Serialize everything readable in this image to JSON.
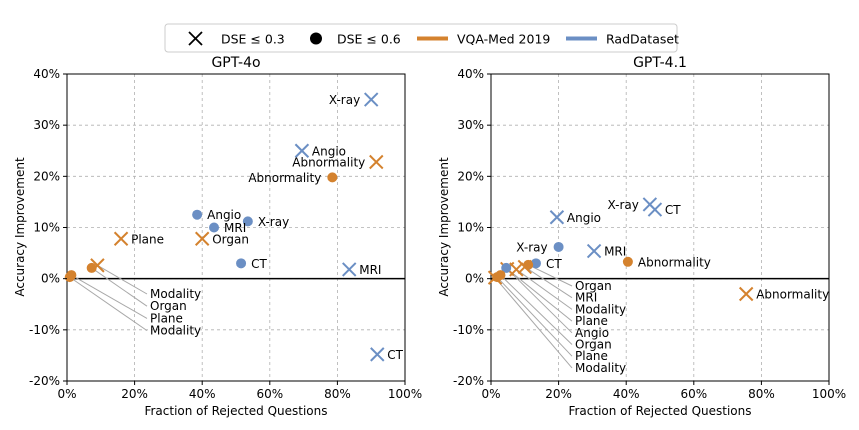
{
  "legend": {
    "items": [
      {
        "label": "DSE ≤ 0.3",
        "kind": "marker-x"
      },
      {
        "label": "DSE ≤ 0.6",
        "kind": "marker-dot"
      },
      {
        "label": "VQA-Med 2019",
        "kind": "line",
        "color": "#d4822e"
      },
      {
        "label": "RadDataset",
        "kind": "line",
        "color": "#6b8fc4"
      }
    ]
  },
  "colors": {
    "vqa": "#d4822e",
    "rad": "#6b8fc4"
  },
  "chart_data": [
    {
      "type": "scatter",
      "title": "GPT-4o",
      "xlabel": "Fraction of Rejected Questions",
      "ylabel": "Accuracy Improvement",
      "xlim": [
        0,
        100
      ],
      "ylim": [
        -20,
        40
      ],
      "xticks": [
        "0%",
        "20%",
        "40%",
        "60%",
        "80%",
        "100%"
      ],
      "yticks": [
        "-20%",
        "-10%",
        "0%",
        "10%",
        "20%",
        "30%",
        "40%"
      ],
      "grid": true,
      "points": [
        {
          "x": 90,
          "y": 35,
          "marker": "x",
          "dataset": "RadDataset",
          "label": "X-ray",
          "pos": "left"
        },
        {
          "x": 69.5,
          "y": 25,
          "marker": "x",
          "dataset": "RadDataset",
          "label": "Angio",
          "pos": "right"
        },
        {
          "x": 91.5,
          "y": 22.8,
          "marker": "x",
          "dataset": "VQA-Med 2019",
          "label": "Abnormality",
          "pos": "left"
        },
        {
          "x": 78.5,
          "y": 19.8,
          "marker": "dot",
          "dataset": "VQA-Med 2019",
          "label": "Abnormality",
          "pos": "left"
        },
        {
          "x": 38.5,
          "y": 12.5,
          "marker": "dot",
          "dataset": "RadDataset",
          "label": "Angio",
          "pos": "right"
        },
        {
          "x": 53.5,
          "y": 11.2,
          "marker": "dot",
          "dataset": "RadDataset",
          "label": "X-ray",
          "pos": "right"
        },
        {
          "x": 43.5,
          "y": 10,
          "marker": "dot",
          "dataset": "RadDataset",
          "label": "MRI",
          "pos": "right"
        },
        {
          "x": 16,
          "y": 7.8,
          "marker": "x",
          "dataset": "VQA-Med 2019",
          "label": "Plane",
          "pos": "right"
        },
        {
          "x": 40,
          "y": 7.8,
          "marker": "x",
          "dataset": "VQA-Med 2019",
          "label": "Organ",
          "pos": "right"
        },
        {
          "x": 51.5,
          "y": 3,
          "marker": "dot",
          "dataset": "RadDataset",
          "label": "CT",
          "pos": "right"
        },
        {
          "x": 83.5,
          "y": 1.8,
          "marker": "x",
          "dataset": "RadDataset",
          "label": "MRI",
          "pos": "right"
        },
        {
          "x": 91.8,
          "y": -14.8,
          "marker": "x",
          "dataset": "RadDataset",
          "label": "CT",
          "pos": "right"
        },
        {
          "x": 9,
          "y": 2.6,
          "marker": "x",
          "dataset": "VQA-Med 2019",
          "label": "Modality",
          "pos": "callout",
          "slot": 0
        },
        {
          "x": 7.3,
          "y": 2.1,
          "marker": "dot",
          "dataset": "VQA-Med 2019",
          "label": "Organ",
          "pos": "callout",
          "slot": 1
        },
        {
          "x": 1.3,
          "y": 0.7,
          "marker": "dot",
          "dataset": "VQA-Med 2019",
          "label": "Plane",
          "pos": "callout",
          "slot": 2
        },
        {
          "x": 0.8,
          "y": 0.3,
          "marker": "dot",
          "dataset": "VQA-Med 2019",
          "label": "Modality",
          "pos": "callout",
          "slot": 3
        }
      ]
    },
    {
      "type": "scatter",
      "title": "GPT-4.1",
      "xlabel": "Fraction of Rejected Questions",
      "ylabel": "Accuracy Improvement",
      "xlim": [
        0,
        100
      ],
      "ylim": [
        -20,
        40
      ],
      "xticks": [
        "0%",
        "20%",
        "40%",
        "60%",
        "80%",
        "100%"
      ],
      "yticks": [
        "-20%",
        "-10%",
        "0%",
        "10%",
        "20%",
        "30%",
        "40%"
      ],
      "grid": true,
      "points": [
        {
          "x": 47,
          "y": 14.5,
          "marker": "x",
          "dataset": "RadDataset",
          "label": "X-ray",
          "pos": "left"
        },
        {
          "x": 48.5,
          "y": 13.5,
          "marker": "x",
          "dataset": "RadDataset",
          "label": "CT",
          "pos": "right"
        },
        {
          "x": 19.5,
          "y": 12,
          "marker": "x",
          "dataset": "RadDataset",
          "label": "Angio",
          "pos": "right"
        },
        {
          "x": 20,
          "y": 6.2,
          "marker": "dot",
          "dataset": "RadDataset",
          "label": "X-ray",
          "pos": "left"
        },
        {
          "x": 30.5,
          "y": 5.4,
          "marker": "x",
          "dataset": "RadDataset",
          "label": "MRI",
          "pos": "right"
        },
        {
          "x": 40.5,
          "y": 3.3,
          "marker": "dot",
          "dataset": "VQA-Med 2019",
          "label": "Abnormality",
          "pos": "right"
        },
        {
          "x": 13.3,
          "y": 3,
          "marker": "dot",
          "dataset": "RadDataset",
          "label": "CT",
          "pos": "right"
        },
        {
          "x": 75.5,
          "y": -3,
          "marker": "x",
          "dataset": "VQA-Med 2019",
          "label": "Abnormality",
          "pos": "right"
        },
        {
          "x": 11,
          "y": 2.7,
          "marker": "dot",
          "dataset": "VQA-Med 2019",
          "label": "Organ",
          "pos": "callout",
          "slot": 0
        },
        {
          "x": 10,
          "y": 2.3,
          "marker": "x",
          "dataset": "VQA-Med 2019",
          "label": "MRI",
          "pos": "callout",
          "slot": 1
        },
        {
          "x": 7.5,
          "y": 1.8,
          "marker": "x",
          "dataset": "VQA-Med 2019",
          "label": "Modality",
          "pos": "callout",
          "slot": 2
        },
        {
          "x": 4.8,
          "y": 1.9,
          "marker": "x",
          "dataset": "VQA-Med 2019",
          "label": "Plane",
          "pos": "callout",
          "slot": 3
        },
        {
          "x": 4.5,
          "y": 2.1,
          "marker": "dot",
          "dataset": "RadDataset",
          "label": "Angio",
          "pos": "callout",
          "slot": 4
        },
        {
          "x": 2.8,
          "y": 0.7,
          "marker": "dot",
          "dataset": "VQA-Med 2019",
          "label": "Organ",
          "pos": "callout",
          "slot": 5
        },
        {
          "x": 1.8,
          "y": 0.3,
          "marker": "dot",
          "dataset": "VQA-Med 2019",
          "label": "Plane",
          "pos": "callout",
          "slot": 6
        },
        {
          "x": 1.2,
          "y": 0.2,
          "marker": "x",
          "dataset": "VQA-Med 2019",
          "label": "Modality",
          "pos": "callout",
          "slot": 7
        }
      ]
    }
  ]
}
